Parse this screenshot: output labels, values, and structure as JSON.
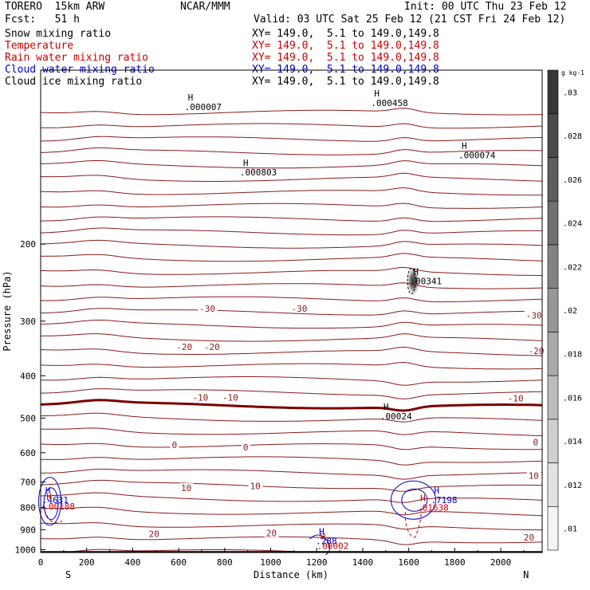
{
  "header": {
    "model": "TORERO  15km ARW",
    "center": "NCAR/MMM",
    "init": "Init: 00 UTC Thu 23 Feb 12",
    "fcst": "Fcst:   51 h",
    "valid": "Valid: 03 UTC Sat 25 Feb 12 (21 CST Fri 24 Feb 12)",
    "fields": [
      {
        "label": "Snow mixing ratio",
        "xy": "XY= 149.0,  5.1 to 149.0,149.8",
        "color": "#000000"
      },
      {
        "label": "Temperature",
        "xy": "XY= 149.0,  5.1 to 149.0,149.8",
        "color": "#cc0000"
      },
      {
        "label": "Rain water mixing ratio",
        "xy": "XY= 149.0,  5.1 to 149.0,149.8",
        "color": "#cc0000"
      },
      {
        "label": "Cloud water mixing ratio",
        "xy": "XY= 149.0,  5.1 to 149.0,149.8",
        "color": "#0000cc"
      },
      {
        "label": "Cloud ice mixing ratio",
        "xy": "XY= 149.0,  5.1 to 149.0,149.8",
        "color": "#000000"
      }
    ]
  },
  "chart_data": {
    "type": "contour",
    "xlabel": "Distance (km)",
    "ylabel": "Pressure (hPa)",
    "xlim": [
      0,
      2180
    ],
    "ylim": [
      1015,
      80
    ],
    "y_scale": "log",
    "x_ticks": [
      0,
      200,
      400,
      600,
      800,
      1000,
      1200,
      1400,
      1600,
      1800,
      2000
    ],
    "y_ticks": [
      200,
      300,
      400,
      500,
      600,
      700,
      800,
      900,
      1000
    ],
    "direction_left": "S",
    "direction_right": "N",
    "colorbar": {
      "unit": "g kg-1",
      "ticks": [
        ".01",
        ".012",
        ".014",
        ".016",
        ".018",
        ".02",
        ".022",
        ".024",
        ".026",
        ".028",
        ".03"
      ]
    },
    "temperature_labels": [
      {
        "x": 690,
        "p": 282,
        "text": "-30"
      },
      {
        "x": 1090,
        "p": 282,
        "text": "-30"
      },
      {
        "x": 2110,
        "p": 292,
        "text": "-30"
      },
      {
        "x": 590,
        "p": 345,
        "text": "-20"
      },
      {
        "x": 710,
        "p": 345,
        "text": "-20"
      },
      {
        "x": 2120,
        "p": 352,
        "text": "-20"
      },
      {
        "x": 660,
        "p": 450,
        "text": "-10"
      },
      {
        "x": 790,
        "p": 450,
        "text": "-10"
      },
      {
        "x": 2030,
        "p": 452,
        "text": "-10"
      },
      {
        "x": 570,
        "p": 578,
        "text": "0"
      },
      {
        "x": 880,
        "p": 586,
        "text": "0"
      },
      {
        "x": 2140,
        "p": 570,
        "text": "0"
      },
      {
        "x": 610,
        "p": 726,
        "text": "10"
      },
      {
        "x": 910,
        "p": 718,
        "text": "10"
      },
      {
        "x": 2120,
        "p": 680,
        "text": "10"
      },
      {
        "x": 470,
        "p": 924,
        "text": "20"
      },
      {
        "x": 980,
        "p": 920,
        "text": "20"
      },
      {
        "x": 2100,
        "p": 942,
        "text": "20"
      }
    ],
    "maxima_labels": [
      {
        "x": 640,
        "p": 97,
        "text": ".000007",
        "color": "#000000"
      },
      {
        "x": 1450,
        "p": 95,
        "text": ".000458",
        "color": "#000000"
      },
      {
        "x": 1830,
        "p": 125,
        "text": ".000074",
        "color": "#000000"
      },
      {
        "x": 880,
        "p": 137,
        "text": ".000803",
        "color": "#000000"
      },
      {
        "x": 1620,
        "p": 243,
        "text": ".00341",
        "color": "#000000"
      },
      {
        "x": 1490,
        "p": 495,
        "text": ".00024",
        "color": "#000000"
      },
      {
        "x": 20,
        "p": 770,
        "text": ".4631",
        "color": "#0000cc"
      },
      {
        "x": 1710,
        "p": 770,
        "text": ".7198",
        "color": "#0000cc"
      },
      {
        "x": 25,
        "p": 795,
        "text": ".00188",
        "color": "#cc0000"
      },
      {
        "x": 1650,
        "p": 800,
        "text": ".01638",
        "color": "#cc0000"
      },
      {
        "x": 1210,
        "p": 956,
        "text": ".288",
        "color": "#0000cc"
      },
      {
        "x": 1215,
        "p": 980,
        "text": ".00002",
        "color": "#cc0000"
      }
    ]
  }
}
